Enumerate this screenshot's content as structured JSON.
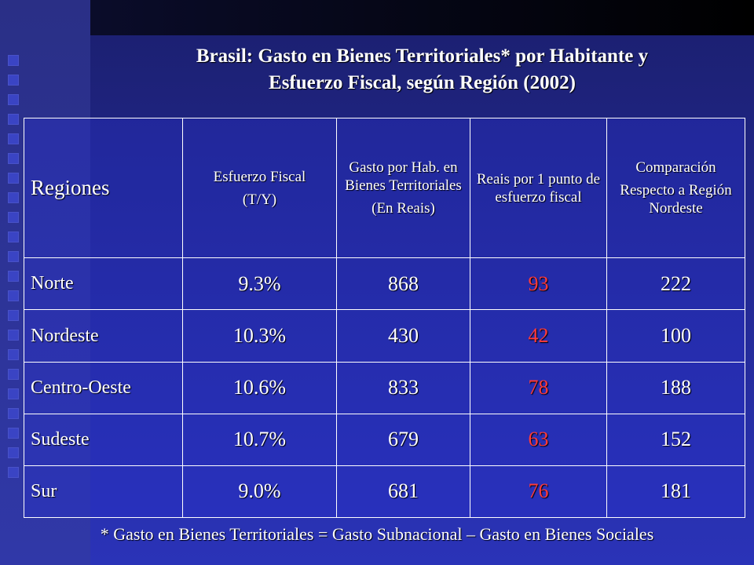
{
  "title_line1": "Brasil: Gasto en Bienes Territoriales* por Habitante y",
  "title_line2": "Esfuerzo Fiscal, según Región (2002)",
  "headers": {
    "regiones": "Regiones",
    "esfuerzo_line1": "Esfuerzo Fiscal",
    "esfuerzo_line2": "(T/Y)",
    "gasto_line1": "Gasto por Hab. en Bienes Territoriales",
    "gasto_line2": "(En Reais)",
    "reais": "Reais por 1 punto de esfuerzo fiscal",
    "comp_line1": "Comparación",
    "comp_line2": "Respecto a Región Nordeste"
  },
  "rows": [
    {
      "region": "Norte",
      "esfuerzo": "9.3%",
      "gasto": "868",
      "reais": "93",
      "comparacion": "222"
    },
    {
      "region": "Nordeste",
      "esfuerzo": "10.3%",
      "gasto": "430",
      "reais": "42",
      "comparacion": "100"
    },
    {
      "region": "Centro-Oeste",
      "esfuerzo": "10.6%",
      "gasto": "833",
      "reais": "78",
      "comparacion": "188"
    },
    {
      "region": "Sudeste",
      "esfuerzo": "10.7%",
      "gasto": "679",
      "reais": "63",
      "comparacion": "152"
    },
    {
      "region": "Sur",
      "esfuerzo": "9.0%",
      "gasto": "681",
      "reais": "76",
      "comparacion": "181"
    }
  ],
  "footnote": "* Gasto en Bienes Territoriales = Gasto Subnacional – Gasto en Bienes Sociales",
  "colors": {
    "highlight": "#ff3a3a",
    "background": "#2a33b8"
  }
}
